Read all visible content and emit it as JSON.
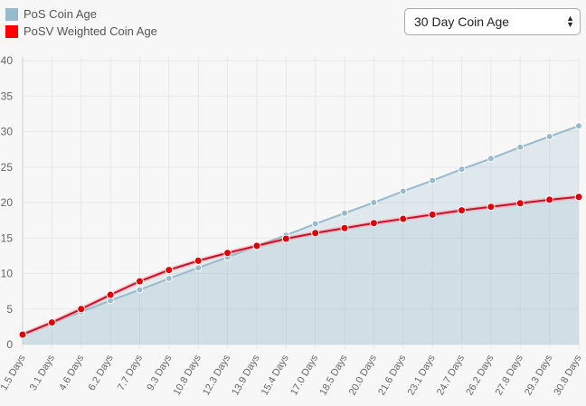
{
  "legend": {
    "items": [
      {
        "label": "PoS Coin Age",
        "color": "#97bbcd"
      },
      {
        "label": "PoSV Weighted Coin Age",
        "color": "#ff0000"
      }
    ]
  },
  "selector": {
    "selected": "30 Day Coin Age"
  },
  "chart_data": {
    "type": "line",
    "title": "",
    "xlabel": "",
    "ylabel": "",
    "ylim": [
      0,
      40
    ],
    "yticks": [
      0,
      5,
      10,
      15,
      20,
      25,
      30,
      35,
      40
    ],
    "grid": true,
    "legend_position": "top-left",
    "categories": [
      "1.5 Days",
      "3.1 Days",
      "4.6 Days",
      "6.2 Days",
      "7.7 Days",
      "9.3 Days",
      "10.8 Days",
      "12.3 Days",
      "13.9 Days",
      "15.4 Days",
      "17.0 Days",
      "18.5 Days",
      "20.0 Days",
      "21.6 Days",
      "23.1 Days",
      "24.7 Days",
      "26.2 Days",
      "27.8 Days",
      "29.3 Days",
      "30.8 Days"
    ],
    "series": [
      {
        "name": "PoS Coin Age",
        "color": "#97bbcd",
        "fill": true,
        "values": [
          1.5,
          3.1,
          4.6,
          6.2,
          7.7,
          9.3,
          10.8,
          12.3,
          13.9,
          15.4,
          17.0,
          18.5,
          20.0,
          21.6,
          23.1,
          24.7,
          26.2,
          27.8,
          29.3,
          30.8
        ]
      },
      {
        "name": "PoSV Weighted Coin Age",
        "color": "#d40000",
        "fill": true,
        "values": [
          1.4,
          3.1,
          5.0,
          7.0,
          8.9,
          10.5,
          11.8,
          12.9,
          13.9,
          14.9,
          15.7,
          16.4,
          17.1,
          17.7,
          18.3,
          18.9,
          19.4,
          19.9,
          20.4,
          20.8
        ]
      }
    ]
  }
}
